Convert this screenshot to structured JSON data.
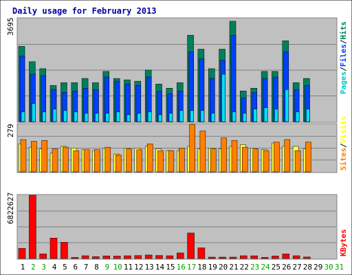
{
  "chart_data": [
    {
      "type": "bar",
      "title": "Daily usage for February 2013",
      "max_label": "3695",
      "ylim": [
        0,
        3695
      ],
      "x": [
        "1",
        "2",
        "3",
        "4",
        "5",
        "6",
        "7",
        "8",
        "9",
        "10",
        "11",
        "12",
        "13",
        "14",
        "15",
        "16",
        "17",
        "18",
        "19",
        "20",
        "21",
        "22",
        "23",
        "24",
        "25",
        "26",
        "27",
        "28",
        "29",
        "30",
        "31"
      ],
      "legend": [
        {
          "text": "Pages",
          "color": "#00c8c8"
        },
        {
          "text": "/",
          "color": "#000000"
        },
        {
          "text": "Files",
          "color": "#0040ff"
        },
        {
          "text": "/",
          "color": "#000000"
        },
        {
          "text": "Hits",
          "color": "#00805c"
        }
      ],
      "series": [
        {
          "name": "Hits",
          "color": "#00805c",
          "values": [
            2700,
            2150,
            1900,
            1300,
            1400,
            1400,
            1550,
            1400,
            1800,
            1550,
            1500,
            1450,
            1850,
            1350,
            1200,
            1400,
            3100,
            2600,
            1900,
            2600,
            3600,
            1100,
            1200,
            1800,
            1800,
            2900,
            1400,
            1550,
            0,
            0,
            0
          ]
        },
        {
          "name": "Files",
          "color": "#0040ff",
          "values": [
            2350,
            1700,
            1650,
            1150,
            1050,
            1100,
            1200,
            1150,
            1600,
            1450,
            1350,
            1300,
            1600,
            1100,
            1000,
            1100,
            2500,
            2250,
            1550,
            2200,
            3100,
            850,
            1050,
            1550,
            1600,
            2500,
            1150,
            1300,
            0,
            0,
            0
          ]
        },
        {
          "name": "Pages",
          "color": "#00e0ff",
          "values": [
            350,
            650,
            350,
            450,
            400,
            350,
            300,
            300,
            300,
            350,
            250,
            300,
            350,
            250,
            300,
            400,
            400,
            400,
            300,
            1700,
            350,
            300,
            450,
            500,
            450,
            1150,
            350,
            450,
            0,
            0,
            0
          ]
        }
      ]
    },
    {
      "type": "bar",
      "max_label": "279",
      "ylim": [
        0,
        279
      ],
      "legend": [
        {
          "text": "Sites",
          "color": "#ff8000"
        },
        {
          "text": "/",
          "color": "#000000"
        },
        {
          "text": "Visits",
          "color": "#ffff00"
        }
      ],
      "series": [
        {
          "name": "Visits",
          "color": "#ffff40",
          "values": [
            165,
            145,
            135,
            110,
            150,
            140,
            130,
            125,
            140,
            105,
            140,
            140,
            150,
            135,
            125,
            125,
            150,
            135,
            140,
            135,
            150,
            160,
            140,
            130,
            170,
            150,
            150,
            135,
            0,
            0,
            0
          ]
        },
        {
          "name": "Sites",
          "color": "#ff8000",
          "values": [
            190,
            180,
            185,
            135,
            145,
            125,
            130,
            130,
            145,
            100,
            135,
            130,
            165,
            125,
            125,
            140,
            279,
            240,
            135,
            200,
            185,
            145,
            135,
            125,
            175,
            190,
            125,
            175,
            0,
            0,
            0
          ]
        }
      ]
    },
    {
      "type": "bar",
      "max_label": "6822627",
      "ylim": [
        0,
        6822627
      ],
      "legend": [
        {
          "text": "KBytes",
          "color": "#ff0000"
        }
      ],
      "series": [
        {
          "name": "KBytes",
          "color": "#ff0000",
          "values": [
            1100000,
            6822627,
            500000,
            2200000,
            1750000,
            120000,
            300000,
            200000,
            280000,
            260000,
            300000,
            320000,
            380000,
            330000,
            300000,
            600000,
            2750000,
            1150000,
            150000,
            150000,
            150000,
            300000,
            290000,
            120000,
            270000,
            500000,
            300000,
            160000,
            0,
            0,
            0
          ]
        }
      ]
    }
  ],
  "colors": {
    "panel_bg": "#c0c0c0",
    "outer_bg": "#ffffff",
    "weekend_tick": "#00a000",
    "weekday_tick": "#000000"
  },
  "weekend_days": [
    "2",
    "3",
    "9",
    "10",
    "16",
    "17",
    "23",
    "24",
    "30",
    "31"
  ]
}
